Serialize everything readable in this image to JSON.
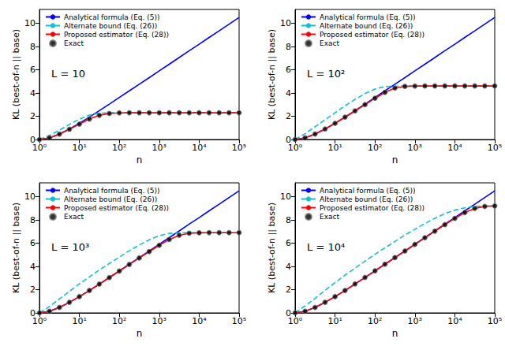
{
  "chart_data": [
    {
      "type": "line",
      "annotation": "L = 10",
      "xlabel": "n",
      "ylabel": "KL (best-of-n || base)",
      "log": "x",
      "grid": false,
      "legend": "upper left",
      "xlim": [
        1,
        100000
      ],
      "ylim": [
        0,
        11.2
      ],
      "xticks": [
        {
          "value": 1,
          "label": "10⁰"
        },
        {
          "value": 10,
          "label": "10¹"
        },
        {
          "value": 100,
          "label": "10²"
        },
        {
          "value": 1000,
          "label": "10³"
        },
        {
          "value": 10000,
          "label": "10⁴"
        },
        {
          "value": 100000,
          "label": "10⁵"
        }
      ],
      "yticks": [
        0,
        2,
        4,
        6,
        8,
        10
      ],
      "x": [
        1,
        1.778,
        3.162,
        5.623,
        10,
        17.78,
        31.62,
        56.23,
        100,
        177.8,
        316.2,
        562.3,
        1000,
        1778,
        3162,
        5623,
        10000,
        17783,
        31623,
        56234,
        100000
      ],
      "series": [
        {
          "name": "Analytical formula (Eq. (5))",
          "type": "line",
          "color": "#0000ff",
          "line_style": "solid",
          "values": [
            0,
            0.14,
            0.47,
            0.91,
            1.4,
            1.93,
            2.49,
            3.05,
            3.62,
            4.19,
            4.76,
            5.33,
            5.91,
            6.48,
            7.06,
            7.64,
            8.21,
            8.79,
            9.36,
            9.94,
            10.51
          ]
        },
        {
          "name": "Alternate bound (Eq. (26))",
          "type": "line",
          "color": "#17becf",
          "line_style": "dashed",
          "values": [
            0,
            0.35,
            0.8,
            1.3,
            1.75,
            2.1,
            2.27,
            2.3,
            2.3,
            2.3,
            2.3,
            2.3,
            2.3,
            2.3,
            2.3,
            2.3,
            2.3,
            2.3,
            2.3,
            2.3,
            2.3
          ]
        },
        {
          "name": "Proposed estimator (Eq. (28))",
          "type": "line",
          "color": "#ff0000",
          "line_style": "solid",
          "values": [
            0,
            0.14,
            0.46,
            0.88,
            1.32,
            1.76,
            2.08,
            2.24,
            2.29,
            2.3,
            2.3,
            2.3,
            2.3,
            2.3,
            2.3,
            2.3,
            2.3,
            2.3,
            2.3,
            2.3,
            2.3
          ]
        },
        {
          "name": "Exact",
          "type": "scatter",
          "color": "#000000",
          "marker": "circle",
          "values": [
            0,
            0.14,
            0.46,
            0.88,
            1.32,
            1.76,
            2.08,
            2.24,
            2.29,
            2.3,
            2.3,
            2.3,
            2.3,
            2.3,
            2.3,
            2.3,
            2.3,
            2.3,
            2.3,
            2.3,
            2.3
          ]
        }
      ]
    },
    {
      "type": "line",
      "annotation": "L = 10²",
      "xlabel": "n",
      "ylabel": "KL (best-of-n || base)",
      "log": "x",
      "grid": false,
      "legend": "upper left",
      "xlim": [
        1,
        100000
      ],
      "ylim": [
        0,
        11.2
      ],
      "xticks": [
        {
          "value": 1,
          "label": "10⁰"
        },
        {
          "value": 10,
          "label": "10¹"
        },
        {
          "value": 100,
          "label": "10²"
        },
        {
          "value": 1000,
          "label": "10³"
        },
        {
          "value": 10000,
          "label": "10⁴"
        },
        {
          "value": 100000,
          "label": "10⁵"
        }
      ],
      "yticks": [
        0,
        2,
        4,
        6,
        8,
        10
      ],
      "x": [
        1,
        1.778,
        3.162,
        5.623,
        10,
        17.78,
        31.62,
        56.23,
        100,
        177.8,
        316.2,
        562.3,
        1000,
        1778,
        3162,
        5623,
        10000,
        17783,
        31623,
        56234,
        100000
      ],
      "series": [
        {
          "name": "Analytical formula (Eq. (5))",
          "type": "line",
          "color": "#0000ff",
          "line_style": "solid",
          "values": [
            0,
            0.14,
            0.47,
            0.91,
            1.4,
            1.93,
            2.49,
            3.05,
            3.62,
            4.19,
            4.76,
            5.33,
            5.91,
            6.48,
            7.06,
            7.64,
            8.21,
            8.79,
            9.36,
            9.94,
            10.51
          ]
        },
        {
          "name": "Alternate bound (Eq. (26))",
          "type": "line",
          "color": "#17becf",
          "line_style": "dashed",
          "values": [
            0,
            0.5,
            1.1,
            1.7,
            2.3,
            2.9,
            3.45,
            3.95,
            4.35,
            4.55,
            4.6,
            4.61,
            4.61,
            4.61,
            4.61,
            4.61,
            4.61,
            4.61,
            4.61,
            4.61,
            4.61
          ]
        },
        {
          "name": "Proposed estimator (Eq. (28))",
          "type": "line",
          "color": "#ff0000",
          "line_style": "solid",
          "values": [
            0,
            0.14,
            0.47,
            0.9,
            1.39,
            1.92,
            2.46,
            3.0,
            3.55,
            4.06,
            4.43,
            4.57,
            4.6,
            4.61,
            4.61,
            4.61,
            4.61,
            4.61,
            4.61,
            4.61,
            4.61
          ]
        },
        {
          "name": "Exact",
          "type": "scatter",
          "color": "#000000",
          "marker": "circle",
          "values": [
            0,
            0.14,
            0.47,
            0.9,
            1.39,
            1.92,
            2.46,
            3.0,
            3.55,
            4.06,
            4.43,
            4.57,
            4.6,
            4.61,
            4.61,
            4.61,
            4.61,
            4.61,
            4.61,
            4.61,
            4.61
          ]
        }
      ]
    },
    {
      "type": "line",
      "annotation": "L = 10³",
      "xlabel": "n",
      "ylabel": "KL (best-of-n || base)",
      "log": "x",
      "grid": false,
      "legend": "upper left",
      "xlim": [
        1,
        100000
      ],
      "ylim": [
        0,
        11.2
      ],
      "xticks": [
        {
          "value": 1,
          "label": "10⁰"
        },
        {
          "value": 10,
          "label": "10¹"
        },
        {
          "value": 100,
          "label": "10²"
        },
        {
          "value": 1000,
          "label": "10³"
        },
        {
          "value": 10000,
          "label": "10⁴"
        },
        {
          "value": 100000,
          "label": "10⁵"
        }
      ],
      "yticks": [
        0,
        2,
        4,
        6,
        8,
        10
      ],
      "x": [
        1,
        1.778,
        3.162,
        5.623,
        10,
        17.78,
        31.62,
        56.23,
        100,
        177.8,
        316.2,
        562.3,
        1000,
        1778,
        3162,
        5623,
        10000,
        17783,
        31623,
        56234,
        100000
      ],
      "series": [
        {
          "name": "Analytical formula (Eq. (5))",
          "type": "line",
          "color": "#0000ff",
          "line_style": "solid",
          "values": [
            0,
            0.14,
            0.47,
            0.91,
            1.4,
            1.93,
            2.49,
            3.05,
            3.62,
            4.19,
            4.76,
            5.33,
            5.91,
            6.48,
            7.06,
            7.64,
            8.21,
            8.79,
            9.36,
            9.94,
            10.51
          ]
        },
        {
          "name": "Alternate bound (Eq. (26))",
          "type": "line",
          "color": "#17becf",
          "line_style": "dashed",
          "values": [
            0,
            0.55,
            1.2,
            1.85,
            2.5,
            3.1,
            3.7,
            4.25,
            4.8,
            5.35,
            5.85,
            6.3,
            6.65,
            6.85,
            6.9,
            6.91,
            6.91,
            6.91,
            6.91,
            6.91,
            6.91
          ]
        },
        {
          "name": "Proposed estimator (Eq. (28))",
          "type": "line",
          "color": "#ff0000",
          "line_style": "solid",
          "values": [
            0,
            0.14,
            0.47,
            0.91,
            1.4,
            1.93,
            2.48,
            3.04,
            3.6,
            4.17,
            4.73,
            5.28,
            5.82,
            6.32,
            6.69,
            6.86,
            6.9,
            6.91,
            6.91,
            6.91,
            6.91
          ]
        },
        {
          "name": "Exact",
          "type": "scatter",
          "color": "#000000",
          "marker": "circle",
          "values": [
            0,
            0.14,
            0.47,
            0.91,
            1.4,
            1.93,
            2.48,
            3.04,
            3.6,
            4.17,
            4.73,
            5.28,
            5.82,
            6.32,
            6.69,
            6.86,
            6.9,
            6.91,
            6.91,
            6.91,
            6.91
          ]
        }
      ]
    },
    {
      "type": "line",
      "annotation": "L = 10⁴",
      "xlabel": "n",
      "ylabel": "KL (best-of-n || base)",
      "log": "x",
      "grid": false,
      "legend": "upper left",
      "xlim": [
        1,
        100000
      ],
      "ylim": [
        0,
        11.2
      ],
      "xticks": [
        {
          "value": 1,
          "label": "10⁰"
        },
        {
          "value": 10,
          "label": "10¹"
        },
        {
          "value": 100,
          "label": "10²"
        },
        {
          "value": 1000,
          "label": "10³"
        },
        {
          "value": 10000,
          "label": "10⁴"
        },
        {
          "value": 100000,
          "label": "10⁵"
        }
      ],
      "yticks": [
        0,
        2,
        4,
        6,
        8,
        10
      ],
      "x": [
        1,
        1.778,
        3.162,
        5.623,
        10,
        17.78,
        31.62,
        56.23,
        100,
        177.8,
        316.2,
        562.3,
        1000,
        1778,
        3162,
        5623,
        10000,
        17783,
        31623,
        56234,
        100000
      ],
      "series": [
        {
          "name": "Analytical formula (Eq. (5))",
          "type": "line",
          "color": "#0000ff",
          "line_style": "solid",
          "values": [
            0,
            0.14,
            0.47,
            0.91,
            1.4,
            1.93,
            2.49,
            3.05,
            3.62,
            4.19,
            4.76,
            5.33,
            5.91,
            6.48,
            7.06,
            7.64,
            8.21,
            8.79,
            9.36,
            9.94,
            10.51
          ]
        },
        {
          "name": "Alternate bound (Eq. (26))",
          "type": "line",
          "color": "#17becf",
          "line_style": "dashed",
          "values": [
            0,
            0.6,
            1.25,
            1.95,
            2.6,
            3.25,
            3.85,
            4.45,
            5.05,
            5.6,
            6.15,
            6.7,
            7.2,
            7.7,
            8.15,
            8.55,
            8.85,
            9.05,
            9.17,
            9.2,
            9.21
          ]
        },
        {
          "name": "Proposed estimator (Eq. (28))",
          "type": "line",
          "color": "#ff0000",
          "line_style": "solid",
          "values": [
            0,
            0.14,
            0.47,
            0.91,
            1.4,
            1.93,
            2.49,
            3.05,
            3.62,
            4.19,
            4.76,
            5.33,
            5.9,
            6.47,
            7.04,
            7.6,
            8.14,
            8.64,
            9.0,
            9.17,
            9.21
          ]
        },
        {
          "name": "Exact",
          "type": "scatter",
          "color": "#000000",
          "marker": "circle",
          "values": [
            0,
            0.14,
            0.47,
            0.91,
            1.4,
            1.93,
            2.49,
            3.05,
            3.62,
            4.19,
            4.76,
            5.33,
            5.9,
            6.47,
            7.04,
            7.6,
            8.14,
            8.64,
            9.0,
            9.17,
            9.21
          ]
        }
      ]
    }
  ]
}
